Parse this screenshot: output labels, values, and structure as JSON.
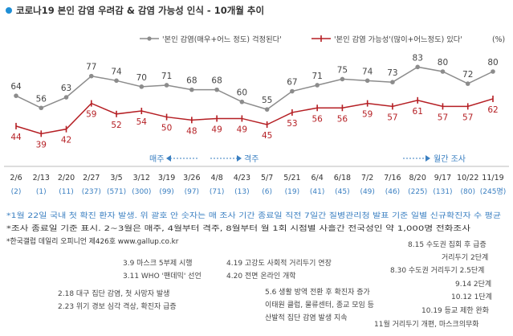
{
  "chart_data": {
    "type": "line",
    "title": "코로나19 본인 감염 우려감 & 감염 가능성 인식 - 10개월 추이",
    "unit_label": "(%)",
    "categories": [
      "2/6",
      "2/13",
      "2/20",
      "2/27",
      "3/5",
      "3/12",
      "3/19",
      "3/26",
      "4/8",
      "4/23",
      "5/7",
      "5/21",
      "6/4",
      "6/18",
      "7/2",
      "7/16",
      "8/20",
      "9/17",
      "10/22",
      "11/19"
    ],
    "sample_sizes": [
      "(2)",
      "(1)",
      "(11)",
      "(237)",
      "(571)",
      "(300)",
      "(99)",
      "(97)",
      "(71)",
      "(13)",
      "(6)",
      "(19)",
      "(41)",
      "(45)",
      "(49)",
      "(46)",
      "(225)",
      "(131)",
      "(80)",
      "(245명)"
    ],
    "ylim": [
      30,
      95
    ],
    "series": [
      {
        "name": "'본인 감염(매우+어느 정도) 걱정된다'",
        "color": "#8c8c8c",
        "values": [
          64,
          56,
          63,
          77,
          74,
          70,
          71,
          68,
          68,
          60,
          55,
          67,
          71,
          75,
          74,
          73,
          83,
          80,
          72,
          80
        ]
      },
      {
        "name": "'본인 감염 가능성'(많이+어느정도) 있다'",
        "color": "#b51f24",
        "values": [
          44,
          39,
          42,
          59,
          52,
          54,
          50,
          48,
          49,
          49,
          45,
          53,
          56,
          56,
          59,
          57,
          61,
          57,
          57,
          62
        ]
      }
    ],
    "period_labels": [
      {
        "text": "매주",
        "arrow": "left",
        "color": "#3a7fc1"
      },
      {
        "text": "격주",
        "arrow": "right",
        "color": "#3a7fc1"
      },
      {
        "text": "월간 조사",
        "arrow": "right",
        "color": "#3a7fc1"
      }
    ],
    "notes": [
      "*1월 22일 국내 첫 확진 환자 발생. 위 괄호 안 숫자는 매 조사 기간 종료일 직전 7일간 질병관리청 발표 기준 일별 신규확진자 수 평균",
      "*조사 종료일 기준 표시. 2~3월은 매주, 4월부터 격주, 8월부터 월 1회 시점별 사흘간 전국성인 약 1,000명 전화조사",
      "*한국갤럽 데일리 오피니언 제426호 www.gallup.co.kr"
    ],
    "events": [
      "8.15 수도권 집회 후 급증",
      "거리두기 2단계",
      "8.30 수도권 거리두기 2.5단계",
      "9.14  2단계",
      "10.12  1단계",
      "10.19 등교 제한 완화",
      "11월 거리두기 개편, 마스크의무화",
      "3.9 마스크 5부제 시행",
      "3.11 WHO '팬데믹' 선언",
      "4.19 고강도 사회적 거리두기 연장",
      "4.20 전면 온라인 개학",
      "2.18 대구 집단 감염, 첫 사망자 발생",
      "2.23 위기 경보 심각 격상, 확진자 급증",
      "5.6 생활 방역 전환 후 확진자 증가",
      "이태원 클럽, 물류센터, 종교 모임 등",
      "산발적 집단 감염 발생 지속"
    ]
  }
}
